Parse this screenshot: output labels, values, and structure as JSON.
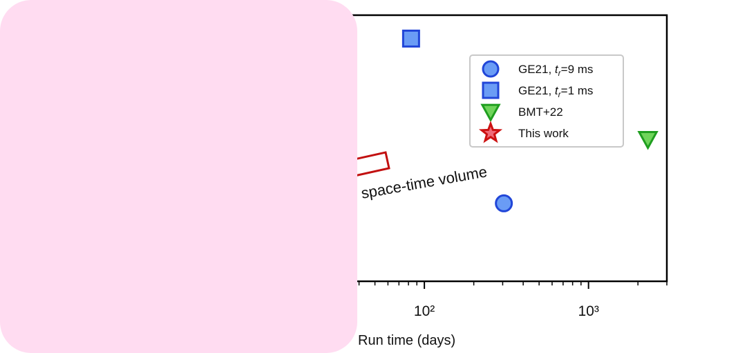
{
  "chart_data": {
    "type": "scatter",
    "xlabel": "Run time (days)",
    "annotation": "space-time volume",
    "xscale": "log",
    "xlim": [
      1,
      3000
    ],
    "xticks": [
      {
        "value": 100,
        "label": "10²"
      },
      {
        "value": 1000,
        "label": "10³"
      }
    ],
    "xminorticks": [
      2,
      3,
      4,
      5,
      6,
      7,
      8,
      9,
      20,
      30,
      40,
      50,
      60,
      70,
      80,
      90,
      200,
      300,
      400,
      500,
      600,
      700,
      800,
      900,
      2000,
      3000
    ],
    "ylim": [
      0,
      1
    ],
    "legend": "upper right",
    "series": [
      {
        "name": "GE21, tr=9 ms",
        "marker": "circle",
        "color": "#6a9cf5",
        "edgecolor": "#2146d8",
        "x": [
          305
        ],
        "y": [
          0.293
        ]
      },
      {
        "name": "GE21, tr=1 ms",
        "marker": "square",
        "color": "#6a9cf5",
        "edgecolor": "#2146d8",
        "x": [
          83
        ],
        "y": [
          0.912
        ]
      },
      {
        "name": "BMT+22",
        "marker": "triangle",
        "color": "#6fd45a",
        "edgecolor": "#1f9e1f",
        "x": [
          2300
        ],
        "y": [
          0.534
        ]
      },
      {
        "name": "This work",
        "marker": "star",
        "color": "#f06a78",
        "edgecolor": "#cc1111",
        "x": [],
        "y": []
      }
    ]
  }
}
